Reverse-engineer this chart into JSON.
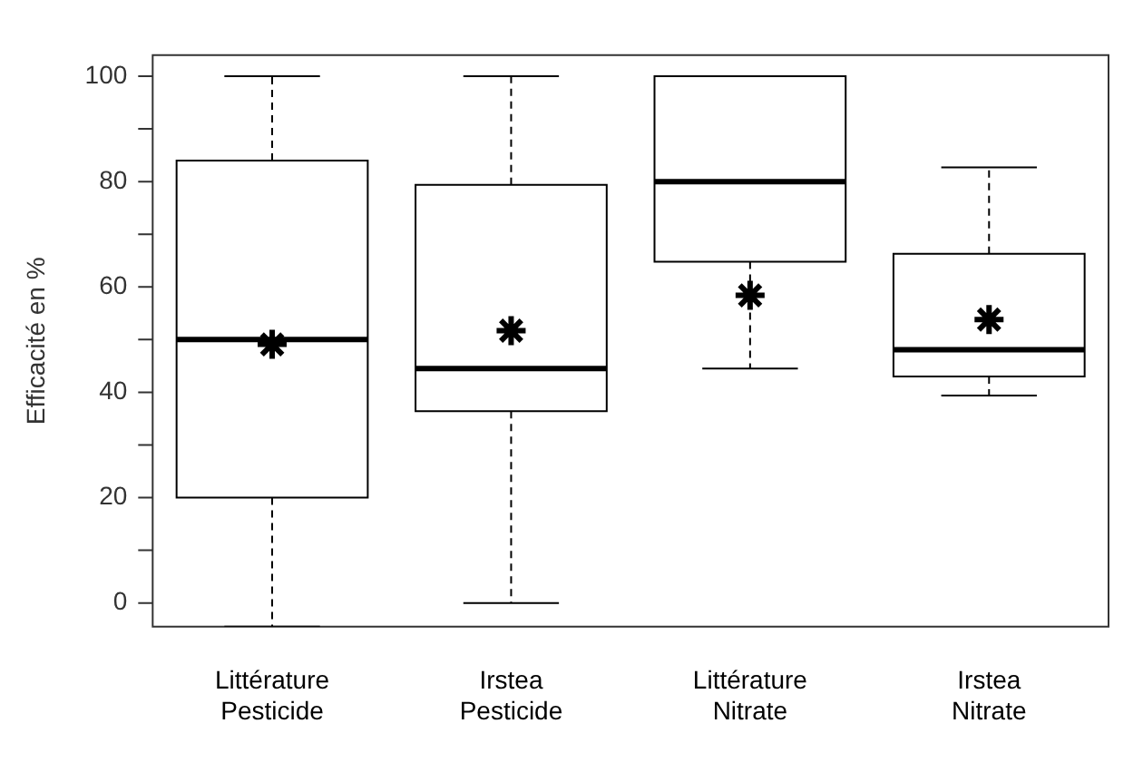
{
  "chart_data": {
    "type": "box",
    "ylabel": "Efficacité en %",
    "categories": [
      "Littérature\nPesticide",
      "Irstea\nPesticide",
      "Littérature\nNitrate",
      "Irstea\nNitrate"
    ],
    "ylim": [
      -4.5,
      104
    ],
    "yticks": [
      0,
      {
        "value": 10,
        "label": null
      },
      20,
      {
        "value": 30,
        "label": null
      },
      40,
      {
        "value": 50,
        "label": null
      },
      60,
      {
        "value": 70,
        "label": null
      },
      80,
      {
        "value": 90,
        "label": null
      },
      100
    ],
    "grid": false,
    "boxes": [
      {
        "low": -4.5,
        "q1": 20,
        "median": 50,
        "q3": 84,
        "high": 100
      },
      {
        "low": 0,
        "q1": 36.4,
        "median": 44.5,
        "q3": 79.4,
        "high": 100
      },
      {
        "low": 44.5,
        "q1": 64.8,
        "median": 80,
        "q3": 100,
        "high": 100
      },
      {
        "low": 39.4,
        "q1": 43,
        "median": 48.1,
        "q3": 66.3,
        "high": 82.7
      }
    ],
    "series": [
      {
        "type": "scatter",
        "color": "#000000",
        "marker": "cross",
        "x": [
          "Littérature\nPesticide",
          "Irstea\nPesticide",
          "Littérature\nNitrate",
          "Irstea\nNitrate"
        ],
        "values": [
          49.1,
          51.7,
          58.4,
          53.8
        ]
      }
    ]
  }
}
